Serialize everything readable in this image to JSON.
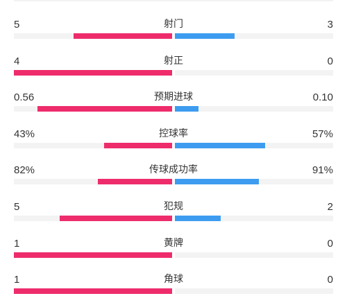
{
  "colors": {
    "home": "#ee2c6c",
    "away": "#3d9cf0",
    "track": "#f3f3f3"
  },
  "stats": [
    {
      "label": "射门",
      "home_text": "5",
      "away_text": "3",
      "home_fraction": 0.625,
      "away_fraction": 0.375
    },
    {
      "label": "射正",
      "home_text": "4",
      "away_text": "0",
      "home_fraction": 1.0,
      "away_fraction": 0.0
    },
    {
      "label": "预期进球",
      "home_text": "0.56",
      "away_text": "0.10",
      "home_fraction": 0.85,
      "away_fraction": 0.15
    },
    {
      "label": "控球率",
      "home_text": "43%",
      "away_text": "57%",
      "home_fraction": 0.43,
      "away_fraction": 0.57
    },
    {
      "label": "传球成功率",
      "home_text": "82%",
      "away_text": "91%",
      "home_fraction": 0.47,
      "away_fraction": 0.53
    },
    {
      "label": "犯规",
      "home_text": "5",
      "away_text": "2",
      "home_fraction": 0.71,
      "away_fraction": 0.29
    },
    {
      "label": "黄牌",
      "home_text": "1",
      "away_text": "0",
      "home_fraction": 1.0,
      "away_fraction": 0.0
    },
    {
      "label": "角球",
      "home_text": "1",
      "away_text": "0",
      "home_fraction": 1.0,
      "away_fraction": 0.0
    }
  ]
}
